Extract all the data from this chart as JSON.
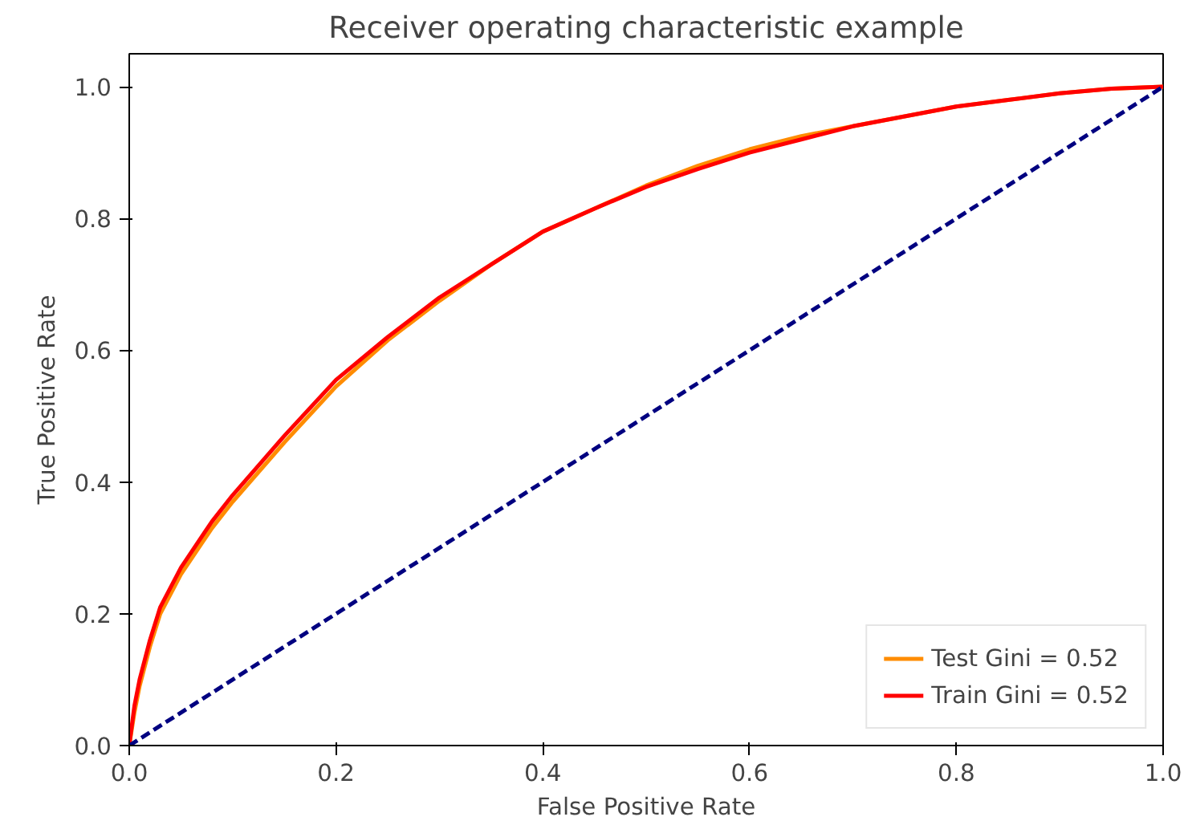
{
  "chart_data": {
    "type": "line",
    "title": "Receiver operating characteristic example",
    "xlabel": "False Positive Rate",
    "ylabel": "True Positive Rate",
    "xlim": [
      0,
      1
    ],
    "ylim": [
      0,
      1.05
    ],
    "xticks": [
      {
        "value": 0,
        "label": "0.0"
      },
      {
        "value": 0.2,
        "label": "0.2"
      },
      {
        "value": 0.4,
        "label": "0.4"
      },
      {
        "value": 0.6,
        "label": "0.6"
      },
      {
        "value": 0.8,
        "label": "0.8"
      },
      {
        "value": 1,
        "label": "1.0"
      }
    ],
    "yticks": [
      {
        "value": 0,
        "label": "0.0"
      },
      {
        "value": 0.2,
        "label": "0.2"
      },
      {
        "value": 0.4,
        "label": "0.4"
      },
      {
        "value": 0.6,
        "label": "0.6"
      },
      {
        "value": 0.8,
        "label": "0.8"
      },
      {
        "value": 1,
        "label": "1.0"
      }
    ],
    "grid": false,
    "legend": "bottom right",
    "marker": "none",
    "series": [
      {
        "name": "Test Gini = 0.52",
        "color": "#ff8c00",
        "line_style": "solid",
        "x": [
          0,
          0.005,
          0.01,
          0.02,
          0.03,
          0.05,
          0.08,
          0.1,
          0.15,
          0.2,
          0.25,
          0.3,
          0.35,
          0.4,
          0.45,
          0.5,
          0.55,
          0.6,
          0.65,
          0.7,
          0.75,
          0.8,
          0.85,
          0.9,
          0.95,
          1
        ],
        "values": [
          0,
          0.05,
          0.09,
          0.15,
          0.2,
          0.26,
          0.33,
          0.37,
          0.46,
          0.545,
          0.615,
          0.675,
          0.73,
          0.78,
          0.815,
          0.85,
          0.88,
          0.905,
          0.925,
          0.94,
          0.955,
          0.97,
          0.98,
          0.99,
          0.997,
          1
        ]
      },
      {
        "name": "Train Gini = 0.52",
        "color": "#ff0000",
        "line_style": "solid",
        "x": [
          0,
          0.005,
          0.01,
          0.02,
          0.03,
          0.05,
          0.08,
          0.1,
          0.15,
          0.2,
          0.25,
          0.3,
          0.35,
          0.4,
          0.45,
          0.5,
          0.55,
          0.6,
          0.65,
          0.7,
          0.75,
          0.8,
          0.85,
          0.9,
          0.95,
          1
        ],
        "values": [
          0,
          0.06,
          0.1,
          0.16,
          0.21,
          0.27,
          0.34,
          0.38,
          0.47,
          0.555,
          0.62,
          0.68,
          0.73,
          0.78,
          0.815,
          0.848,
          0.875,
          0.9,
          0.92,
          0.94,
          0.955,
          0.97,
          0.98,
          0.99,
          0.997,
          1
        ]
      },
      {
        "color": "#000080",
        "line_style": "dashed",
        "x": [
          0,
          1
        ],
        "values": [
          0,
          1
        ]
      }
    ]
  }
}
